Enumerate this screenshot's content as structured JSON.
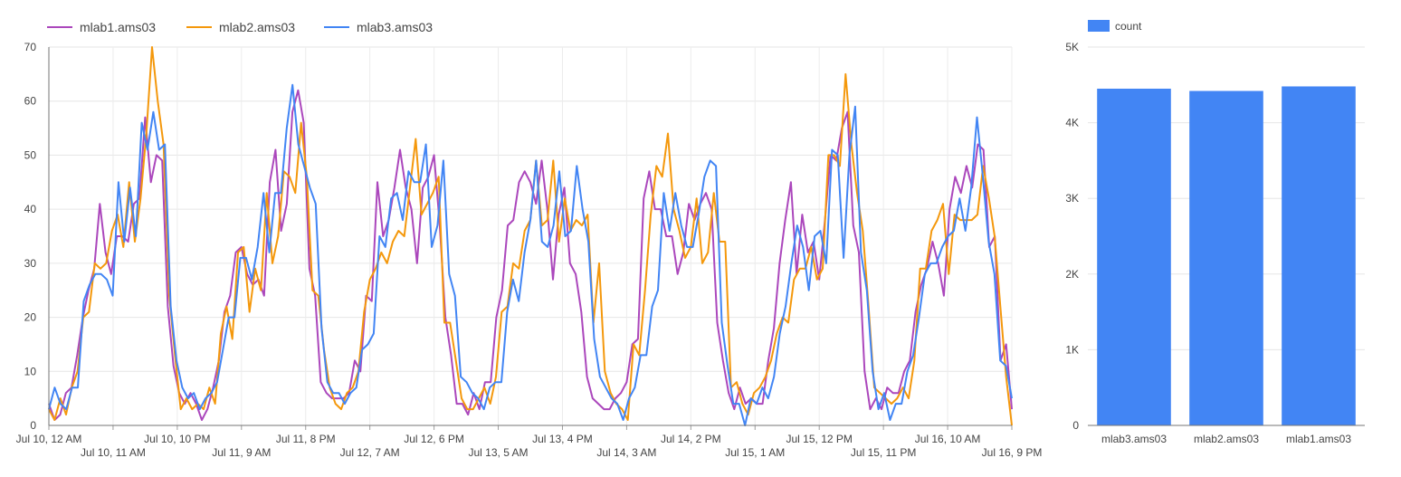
{
  "chart_data": [
    {
      "type": "line",
      "legend_position": "top-left",
      "grid": true,
      "ylim": [
        0,
        70
      ],
      "yticks": [
        0,
        10,
        20,
        30,
        40,
        50,
        60,
        70
      ],
      "x_range_hours": [
        0,
        165
      ],
      "xtick_labels_row1": [
        {
          "label": "Jul 10, 12 AM",
          "hour": 0
        },
        {
          "label": "Jul 10, 10 PM",
          "hour": 22
        },
        {
          "label": "Jul 11, 8 PM",
          "hour": 44
        },
        {
          "label": "Jul 12, 6 PM",
          "hour": 66
        },
        {
          "label": "Jul 13, 4 PM",
          "hour": 88
        },
        {
          "label": "Jul 14, 2 PM",
          "hour": 110
        },
        {
          "label": "Jul 15, 12 PM",
          "hour": 132
        },
        {
          "label": "Jul 16, 10 AM",
          "hour": 154
        }
      ],
      "xtick_labels_row2": [
        {
          "label": "Jul 10, 11 AM",
          "hour": 11
        },
        {
          "label": "Jul 11, 9 AM",
          "hour": 33
        },
        {
          "label": "Jul 12, 7 AM",
          "hour": 55
        },
        {
          "label": "Jul 13, 5 AM",
          "hour": 77
        },
        {
          "label": "Jul 14, 3 AM",
          "hour": 99
        },
        {
          "label": "Jul 15, 1 AM",
          "hour": 121
        },
        {
          "label": "Jul 15, 11 PM",
          "hour": 143
        },
        {
          "label": "Jul 16, 9 PM",
          "hour": 165
        }
      ],
      "series": [
        {
          "name": "mlab1.ams03",
          "color": "#ab47bc",
          "values": [
            4,
            1,
            2,
            6,
            7,
            13,
            20,
            25,
            29,
            41,
            32,
            28,
            35,
            35,
            34,
            41,
            42,
            57,
            45,
            50,
            49,
            22,
            11,
            6,
            4,
            6,
            4,
            1,
            3,
            7,
            12,
            21,
            24,
            32,
            33,
            28,
            26,
            27,
            24,
            45,
            51,
            36,
            41,
            58,
            62,
            56,
            29,
            24,
            8,
            6,
            5,
            5,
            5,
            6,
            12,
            10,
            24,
            23,
            45,
            35,
            38,
            44,
            51,
            44,
            40,
            30,
            44,
            46,
            50,
            37,
            20,
            13,
            4,
            4,
            2,
            6,
            3,
            8,
            8,
            20,
            25,
            37,
            38,
            45,
            47,
            45,
            41,
            49,
            40,
            27,
            39,
            44,
            30,
            28,
            21,
            9,
            5,
            4,
            3,
            3,
            5,
            6,
            8,
            15,
            16,
            42,
            47,
            40,
            40,
            35,
            35,
            28,
            32,
            41,
            38,
            41,
            43,
            40,
            19,
            12,
            6,
            3,
            7,
            4,
            5,
            4,
            4,
            12,
            18,
            30,
            38,
            45,
            28,
            39,
            32,
            34,
            27,
            38,
            50,
            49,
            55,
            58,
            37,
            32,
            10,
            3,
            5,
            3,
            7,
            6,
            6,
            10,
            12,
            21,
            26,
            29,
            34,
            30,
            24,
            40,
            46,
            43,
            48,
            44,
            52,
            51,
            33,
            35,
            12,
            15,
            3
          ]
        },
        {
          "name": "mlab2.ams03",
          "color": "#f4980c",
          "values": [
            3,
            1,
            5,
            2,
            7,
            10,
            20,
            21,
            30,
            29,
            30,
            36,
            39,
            33,
            45,
            34,
            42,
            54,
            70,
            60,
            52,
            24,
            13,
            3,
            5,
            3,
            4,
            3,
            7,
            4,
            17,
            22,
            16,
            32,
            33,
            21,
            29,
            25,
            43,
            30,
            35,
            47,
            46,
            43,
            56,
            46,
            25,
            24,
            14,
            7,
            4,
            3,
            6,
            7,
            10,
            21,
            27,
            29,
            32,
            30,
            34,
            36,
            35,
            44,
            53,
            39,
            41,
            43,
            46,
            19,
            19,
            12,
            5,
            3,
            3,
            5,
            7,
            4,
            9,
            21,
            22,
            30,
            29,
            36,
            38,
            49,
            37,
            38,
            49,
            34,
            42,
            36,
            38,
            37,
            39,
            19,
            30,
            10,
            6,
            4,
            3,
            1,
            15,
            13,
            25,
            39,
            48,
            46,
            54,
            40,
            36,
            31,
            33,
            42,
            30,
            32,
            43,
            34,
            34,
            7,
            8,
            4,
            2,
            6,
            7,
            9,
            12,
            17,
            20,
            19,
            27,
            29,
            29,
            33,
            27,
            29,
            50,
            50,
            48,
            65,
            52,
            43,
            36,
            22,
            7,
            6,
            5,
            4,
            5,
            7,
            5,
            12,
            29,
            29,
            36,
            38,
            41,
            28,
            39,
            38,
            38,
            38,
            39,
            48,
            42,
            35,
            22,
            9,
            0
          ]
        },
        {
          "name": "mlab3.ams03",
          "color": "#4285f4",
          "values": [
            3,
            7,
            4,
            3,
            7,
            7,
            23,
            26,
            28,
            28,
            27,
            24,
            45,
            34,
            44,
            35,
            56,
            51,
            58,
            51,
            52,
            22,
            12,
            7,
            5,
            6,
            3,
            5,
            6,
            8,
            14,
            20,
            20,
            31,
            31,
            27,
            33,
            43,
            32,
            43,
            43,
            55,
            63,
            52,
            48,
            44,
            41,
            18,
            8,
            6,
            6,
            4,
            6,
            7,
            14,
            15,
            17,
            35,
            33,
            42,
            43,
            38,
            47,
            45,
            45,
            52,
            33,
            37,
            49,
            28,
            24,
            9,
            8,
            6,
            5,
            3,
            7,
            8,
            8,
            21,
            27,
            23,
            32,
            38,
            49,
            34,
            33,
            37,
            47,
            35,
            36,
            48,
            40,
            34,
            16,
            9,
            7,
            5,
            4,
            1,
            5,
            7,
            13,
            13,
            22,
            25,
            43,
            36,
            43,
            37,
            33,
            33,
            39,
            46,
            49,
            48,
            19,
            11,
            4,
            4,
            0,
            5,
            4,
            7,
            5,
            9,
            17,
            22,
            30,
            37,
            33,
            25,
            35,
            36,
            30,
            51,
            50,
            31,
            50,
            59,
            32,
            25,
            10,
            3,
            6,
            1,
            4,
            4,
            10,
            13,
            20,
            28,
            30,
            30,
            33,
            35,
            36,
            42,
            36,
            44,
            57,
            46,
            34,
            28,
            12,
            11,
            5
          ]
        }
      ]
    },
    {
      "type": "bar",
      "legend_position": "top-left",
      "grid": true,
      "ylim": [
        0,
        5000
      ],
      "yticks": [
        0,
        1000,
        2000,
        3000,
        4000,
        5000
      ],
      "ytick_labels": [
        "0",
        "1K",
        "2K",
        "3K",
        "4K",
        "5K"
      ],
      "categories": [
        "mlab3.ams03",
        "mlab2.ams03",
        "mlab1.ams03"
      ],
      "series": [
        {
          "name": "count",
          "color": "#4285f4",
          "values": [
            4450,
            4420,
            4480
          ]
        }
      ]
    }
  ]
}
